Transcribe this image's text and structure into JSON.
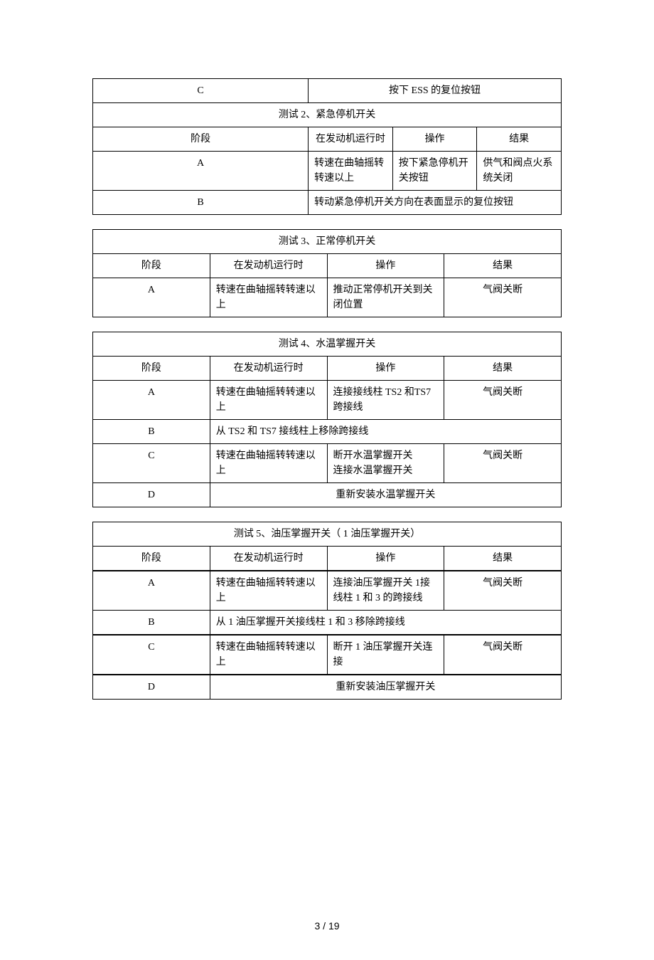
{
  "table1": {
    "rowC": {
      "stage": "C",
      "merged": "按下 ESS 的复位按钮"
    },
    "title": "测试 2、紧急停机开关",
    "headers": {
      "c1": "阶段",
      "c2": "在发动机运行时",
      "c3": "操作",
      "c4": "结果"
    },
    "rowA": {
      "stage": "A",
      "c2": "转速在曲轴摇转转速以上",
      "c3": "按下紧急停机开关按钮",
      "c4": "供气和阀点火系统关闭"
    },
    "rowB": {
      "stage": "B",
      "merged": "转动紧急停机开关方向在表面显示的复位按钮"
    }
  },
  "table3": {
    "title": "测试 3、正常停机开关",
    "headers": {
      "c1": "阶段",
      "c2": "在发动机运行时",
      "c3": "操作",
      "c4": "结果"
    },
    "rowA": {
      "stage": "A",
      "c2": "转速在曲轴摇转转速以上",
      "c3": "推动正常停机开关到关闭位置",
      "c4": "气阀关断"
    }
  },
  "table4": {
    "title": "测试 4、水温掌握开关",
    "headers": {
      "c1": "阶段",
      "c2": "在发动机运行时",
      "c3": "操作",
      "c4": "结果"
    },
    "rowA": {
      "stage": "A",
      "c2": "转速在曲轴摇转转速以上",
      "c3": "连接接线柱   TS2  和TS7 跨接线",
      "c4": "气阀关断"
    },
    "rowB": {
      "stage": "B",
      "merged": "从 TS2 和 TS7 接线柱上移除跨接线"
    },
    "rowC": {
      "stage": "C",
      "c2": "转速在曲轴摇转转速以上",
      "c3a": "断开水温掌握开关",
      "c3b": "连接水温掌握开关",
      "c4": "气阀关断"
    },
    "rowD": {
      "stage": "D",
      "merged": "重新安装水温掌握开关"
    }
  },
  "table5": {
    "title": "测试 5、油压掌握开关（   1 油压掌握开关）",
    "headers": {
      "c1": "阶段",
      "c2": "在发动机运行时",
      "c3": "操作",
      "c4": "结果"
    },
    "rowA": {
      "stage": "A",
      "c2": "转速在曲轴摇转转速以上",
      "c3": "连接油压掌握开关    1接线柱 1 和 3 的跨接线",
      "c4": "气阀关断"
    },
    "rowB": {
      "stage": "B",
      "merged": "从 1 油压掌握开关接线柱    1 和 3 移除跨接线"
    },
    "rowC": {
      "stage": "C",
      "c2": "转速在曲轴摇转转速以上",
      "c3": "断开 1 油压掌握开关连接",
      "c4": "气阀关断"
    },
    "rowD": {
      "stage": "D",
      "merged": "重新安装油压掌握开关"
    }
  },
  "footer": "3  /  19"
}
